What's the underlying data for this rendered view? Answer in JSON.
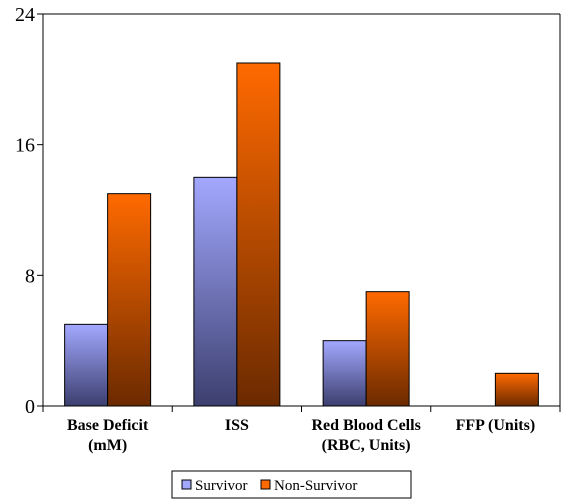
{
  "chart_data": {
    "type": "bar",
    "categories": [
      [
        "Base Deficit",
        "(mM)"
      ],
      [
        "ISS"
      ],
      [
        "Red Blood Cells",
        "(RBC, Units)"
      ],
      [
        "FFP (Units)"
      ]
    ],
    "series": [
      {
        "name": "Survivor",
        "values": [
          5,
          14,
          4,
          0
        ],
        "color_light": "#a3a8ff",
        "color_dark": "#3c3f6e"
      },
      {
        "name": "Non-Survivor",
        "values": [
          13,
          21,
          7,
          2
        ],
        "color_light": "#ff6a00",
        "color_dark": "#6b2a00"
      }
    ],
    "yticks": [
      0,
      8,
      16,
      24
    ],
    "ylim": [
      0,
      24
    ],
    "grid": false,
    "legend": "bottom-center"
  }
}
